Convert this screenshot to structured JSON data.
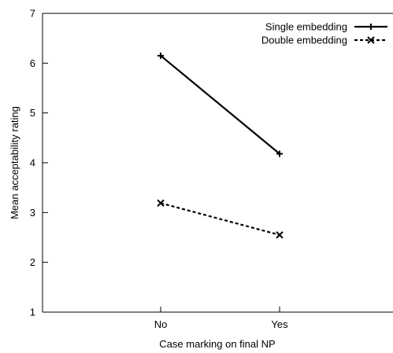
{
  "chart_data": {
    "type": "line",
    "title": "",
    "xlabel": "Case marking on final NP",
    "ylabel": "Mean acceptability rating",
    "categories": [
      "No",
      "Yes"
    ],
    "ylim": [
      1,
      7
    ],
    "yticks": [
      "1",
      "2",
      "3",
      "4",
      "5",
      "6",
      "7"
    ],
    "grid": false,
    "legend_position": "top-right",
    "series": [
      {
        "name": "Single embedding",
        "values": [
          6.15,
          4.18
        ],
        "line_style": "solid",
        "marker": "plus",
        "color": "#000000"
      },
      {
        "name": "Double embedding",
        "values": [
          3.19,
          2.55
        ],
        "line_style": "dashed",
        "marker": "cross",
        "color": "#000000"
      }
    ]
  }
}
